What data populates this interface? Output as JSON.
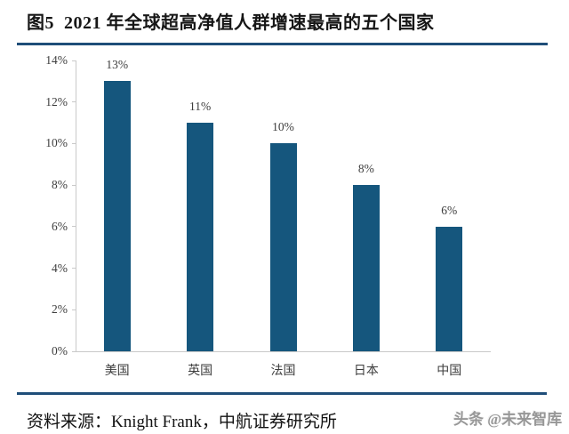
{
  "header": {
    "title": "图5  2021 年全球超高净值人群增速最高的五个国家"
  },
  "footer": {
    "source": "资料来源：Knight Frank，中航证券研究所",
    "watermark": "头条 @未来智库"
  },
  "colors": {
    "bar": "#15567d",
    "rule": "#1f4e79",
    "axis": "#c9c9c9",
    "watermark": "#979797"
  },
  "chart_data": {
    "type": "bar",
    "title": "2021 年全球超高净值人群增速最高的五个国家",
    "categories": [
      "美国",
      "英国",
      "法国",
      "日本",
      "中国"
    ],
    "values": [
      13,
      11,
      10,
      8,
      6
    ],
    "value_labels": [
      "13%",
      "11%",
      "10%",
      "8%",
      "6%"
    ],
    "xlabel": "",
    "ylabel": "",
    "ylim": [
      0,
      14
    ],
    "y_step": 2,
    "y_tick_labels": [
      "0%",
      "2%",
      "4%",
      "6%",
      "8%",
      "10%",
      "12%",
      "14%"
    ],
    "grid": false,
    "legend": "none",
    "bar_color": "#15567d"
  }
}
